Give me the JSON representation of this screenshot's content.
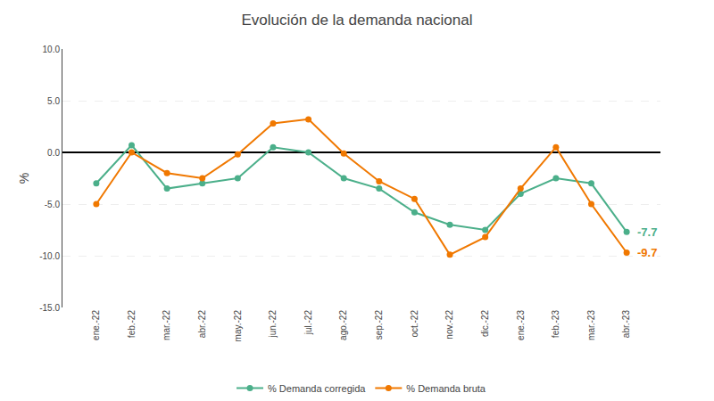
{
  "chart_data": {
    "type": "line",
    "title": "Evolución de la demanda nacional",
    "ylabel": "%",
    "categories": [
      "ene.-22",
      "feb.-22",
      "mar.-22",
      "abr.-22",
      "may.-22",
      "jun.-22",
      "jul.-22",
      "ago.-22",
      "sep.-22",
      "oct.-22",
      "nov.-22",
      "dic.-22",
      "ene.-23",
      "feb.-23",
      "mar.-23",
      "abr.-23"
    ],
    "series": [
      {
        "name": "% Demanda corregida",
        "color": "#4BAF8A",
        "marker": "circle",
        "values": [
          -3.0,
          0.7,
          -3.5,
          -3.0,
          -2.5,
          0.5,
          0.0,
          -2.5,
          -3.5,
          -5.8,
          -7.0,
          -7.5,
          -4.0,
          -2.5,
          -3.0,
          -7.7
        ],
        "annotation": "-7.7"
      },
      {
        "name": "% Demanda bruta",
        "color": "#F07800",
        "marker": "circle",
        "values": [
          -5.0,
          0.0,
          -2.0,
          -2.5,
          -0.2,
          2.8,
          3.2,
          -0.1,
          -2.8,
          -4.5,
          -9.9,
          -8.2,
          -3.5,
          0.5,
          -5.0,
          -9.7
        ],
        "annotation": "-9.7"
      }
    ],
    "ylim": [
      -15.0,
      10.0
    ],
    "yticks": [
      {
        "value": -15,
        "label": "-15.0"
      },
      {
        "value": -10,
        "label": "-10.0"
      },
      {
        "value": -5,
        "label": "-5.0"
      },
      {
        "value": 0,
        "label": "0.0"
      },
      {
        "value": 5,
        "label": "5.0"
      },
      {
        "value": 10,
        "label": "10.0"
      }
    ],
    "grid": true,
    "legend": "bottom"
  }
}
